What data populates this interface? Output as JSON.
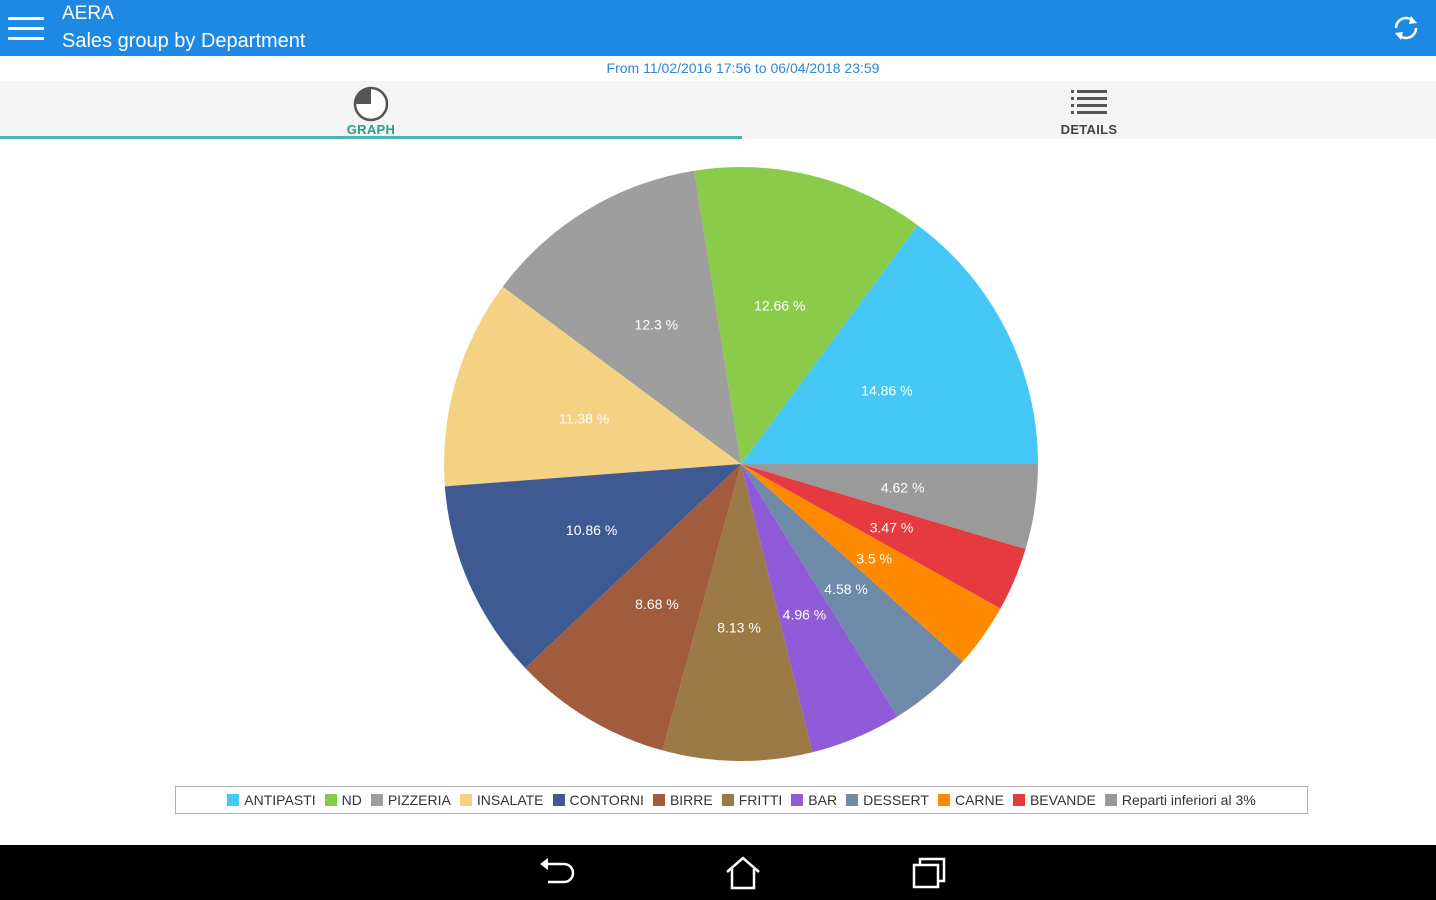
{
  "app": {
    "title": "AERA",
    "subtitle": "Sales group by Department",
    "menu_icon": "hamburger-menu-icon",
    "refresh_icon": "refresh-icon",
    "bar_color": "#1e88e5"
  },
  "date_range": "From 11/02/2016 17:56 to 06/04/2018 23:59",
  "tabs": [
    {
      "label": "GRAPH",
      "icon": "pie-chart-icon",
      "active": true
    },
    {
      "label": "DETAILS",
      "icon": "list-icon",
      "active": false
    }
  ],
  "chart_data": {
    "type": "pie",
    "slices": [
      {
        "name": "ANTIPASTI",
        "value": 14.86,
        "label": "14.86 %",
        "color": "#45c8f5"
      },
      {
        "name": "ND",
        "value": 12.66,
        "label": "12.66 %",
        "color": "#8bcb4a"
      },
      {
        "name": "PIZZERIA",
        "value": 12.3,
        "label": "12.3 %",
        "color": "#9e9e9e"
      },
      {
        "name": "INSALATE",
        "value": 11.38,
        "label": "11.38 %",
        "color": "#f5d283"
      },
      {
        "name": "CONTORNI",
        "value": 10.86,
        "label": "10.86 %",
        "color": "#3f5a93"
      },
      {
        "name": "BIRRE",
        "value": 8.68,
        "label": "8.68 %",
        "color": "#a05c3c"
      },
      {
        "name": "FRITTI",
        "value": 8.13,
        "label": "8.13 %",
        "color": "#9c7a48"
      },
      {
        "name": "BAR",
        "value": 4.96,
        "label": "4.96 %",
        "color": "#8f5bd8"
      },
      {
        "name": "DESSERT",
        "value": 4.58,
        "label": "4.58 %",
        "color": "#6f89a8"
      },
      {
        "name": "CARNE",
        "value": 3.5,
        "label": "3.5 %",
        "color": "#ff8a00"
      },
      {
        "name": "BEVANDE",
        "value": 3.47,
        "label": "3.47 %",
        "color": "#e53a40"
      },
      {
        "name": "Reparti inferiori al 3%",
        "value": 4.62,
        "label": "4.62 %",
        "color": "#9a9a9a"
      }
    ],
    "legend_position": "bottom"
  },
  "navigation": {
    "back_icon": "back-icon",
    "home_icon": "home-icon",
    "recents_icon": "recent-apps-icon"
  }
}
